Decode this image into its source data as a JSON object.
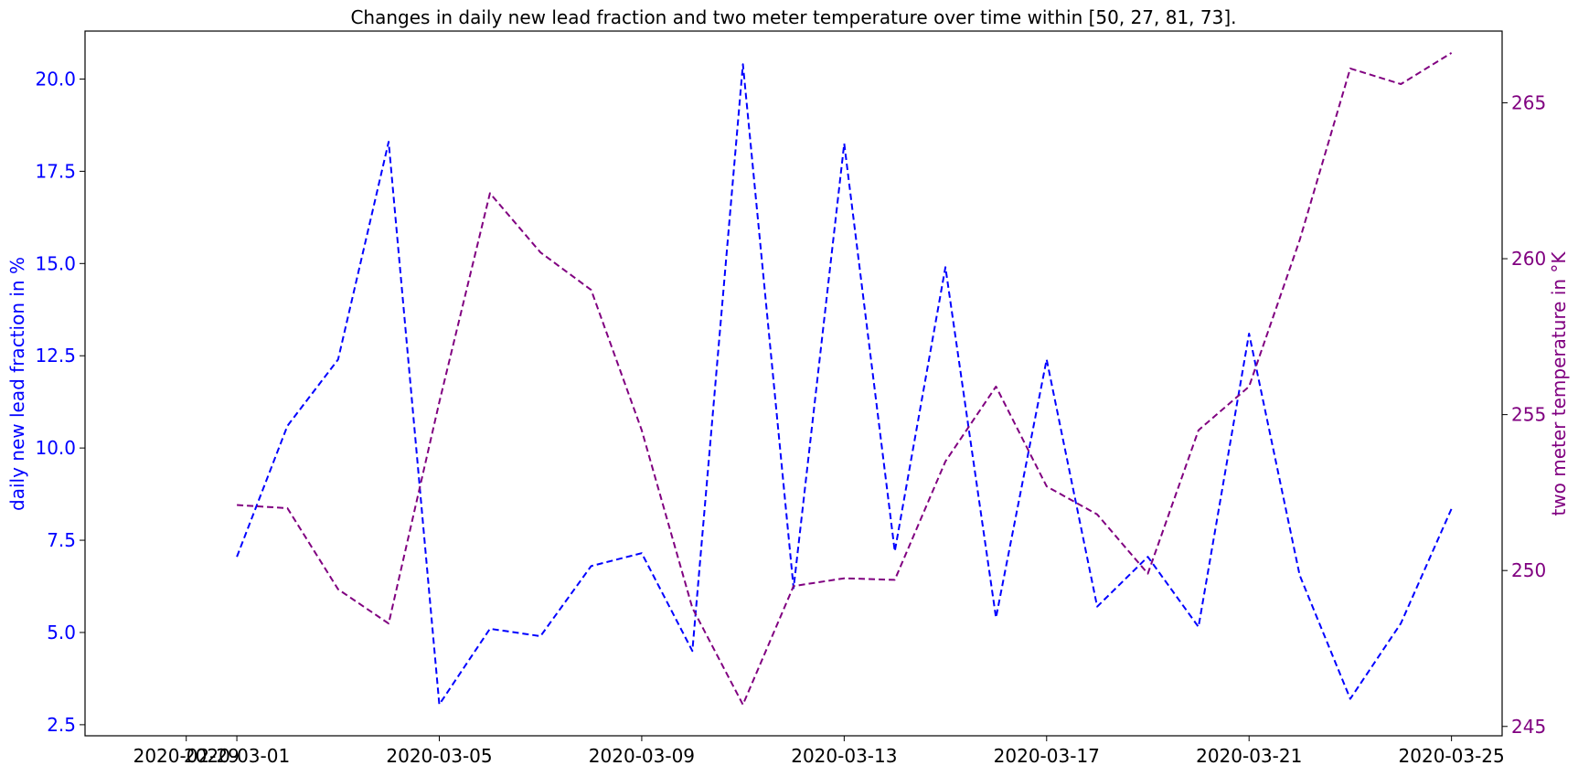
{
  "chart_data": {
    "type": "line",
    "title": "Changes in daily new lead fraction and two meter temperature over time within [50, 27, 81, 73].",
    "x": [
      "2020-03-01",
      "2020-03-02",
      "2020-03-03",
      "2020-03-04",
      "2020-03-05",
      "2020-03-06",
      "2020-03-07",
      "2020-03-08",
      "2020-03-09",
      "2020-03-10",
      "2020-03-11",
      "2020-03-12",
      "2020-03-13",
      "2020-03-14",
      "2020-03-15",
      "2020-03-16",
      "2020-03-17",
      "2020-03-18",
      "2020-03-19",
      "2020-03-20",
      "2020-03-21",
      "2020-03-22",
      "2020-03-23",
      "2020-03-24",
      "2020-03-25"
    ],
    "x_ticks": [
      "2020-02-29",
      "2020-03-01",
      "2020-03-05",
      "2020-03-09",
      "2020-03-13",
      "2020-03-17",
      "2020-03-21",
      "2020-03-25"
    ],
    "xlim": [
      "2020-02-27",
      "2020-03-26"
    ],
    "series": [
      {
        "axis": "left",
        "color": "#0000ff",
        "linestyle": "dashed",
        "values": [
          7.05,
          10.6,
          12.4,
          18.3,
          3.05,
          5.1,
          4.9,
          6.8,
          7.15,
          4.5,
          20.4,
          6.2,
          18.25,
          7.2,
          14.9,
          5.4,
          12.4,
          5.7,
          7.05,
          5.15,
          13.1,
          6.55,
          3.2,
          5.25,
          8.35
        ]
      },
      {
        "axis": "right",
        "color": "#800080",
        "linestyle": "dashed",
        "values": [
          252.1,
          252.0,
          249.4,
          248.3,
          255.4,
          262.1,
          260.2,
          259.0,
          254.5,
          248.8,
          245.7,
          249.5,
          249.75,
          249.7,
          253.5,
          255.9,
          252.7,
          251.8,
          249.9,
          254.5,
          255.9,
          260.6,
          266.1,
          265.6,
          266.6
        ]
      }
    ],
    "y_left": {
      "label": "daily new lead fraction in %",
      "ylim": [
        2.2,
        21.3
      ],
      "ticks": [
        2.5,
        5.0,
        7.5,
        10.0,
        12.5,
        15.0,
        17.5,
        20.0
      ],
      "tick_labels": [
        "2.5",
        "5.0",
        "7.5",
        "10.0",
        "12.5",
        "15.0",
        "17.5",
        "20.0"
      ],
      "color": "#0000ff"
    },
    "y_right": {
      "label": "two meter temperature in °K",
      "ylim": [
        244.7,
        267.3
      ],
      "ticks": [
        245,
        250,
        255,
        260,
        265
      ],
      "tick_labels": [
        "245",
        "250",
        "255",
        "260",
        "265"
      ],
      "color": "#800080"
    },
    "grid": false,
    "legend": "none"
  }
}
